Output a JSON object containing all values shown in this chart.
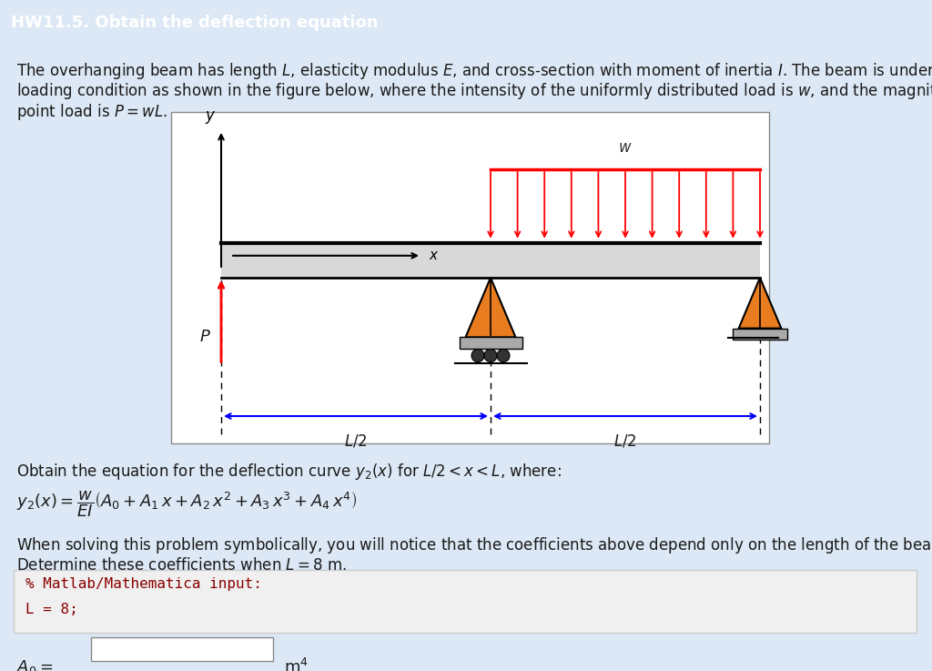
{
  "title": "HW11.5. Obtain the deflection equation",
  "title_bg": "#3a7abf",
  "title_color": "#ffffff",
  "body_bg": "#ffffff",
  "outer_bg": "#dce8f5",
  "para1": "The overhanging beam has length $L$, elasticity modulus $E$, and cross-section with moment of inertia $I$. The beam is under a",
  "para1b": "loading condition as shown in the figure below, where the intensity of the uniformly distributed load is $w$, and the magnitude of the",
  "para1c": "point load is $P = wL$.",
  "para2": "Obtain the equation for the deflection curve $y_2(x)$ for $L/2 < x < L$, where:",
  "equation": "$y_2(x) = \\dfrac{w}{EI}\\left(A_0 + A_1\\, x + A_2\\, x^2 + A_3\\, x^3 + A_4\\, x^4\\right)$",
  "para3": "When solving this problem symbolically, you will notice that the coefficients above depend only on the length of the beam $L$.",
  "para3b": "Determine these coefficients when $L = 8$ m.",
  "code_bg": "#f0f0f0",
  "code_line1": "% Matlab/Mathematica input:",
  "code_line2": "L = 8;",
  "answer_label": "$A_0 =$",
  "answer_unit": "m$^4$",
  "text_color": "#1a1a1a",
  "code_color": "#8b0000",
  "title_fs": 13,
  "body_fs": 12,
  "eq_fs": 13
}
